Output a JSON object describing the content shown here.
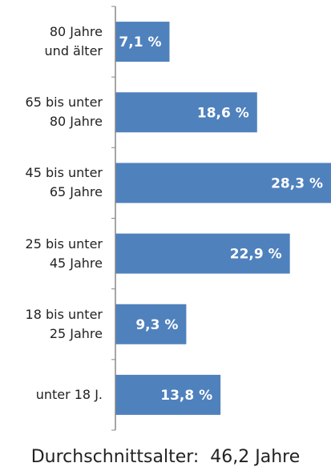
{
  "chart_data": {
    "type": "barh",
    "categories": [
      "80 Jahre\nund älter",
      "65 bis unter\n80 Jahre",
      "45 bis unter\n65 Jahre",
      "25 bis unter\n45 Jahre",
      "18 bis unter\n25 Jahre",
      "unter 18 J."
    ],
    "values": [
      7.1,
      18.6,
      28.3,
      22.9,
      9.3,
      13.8
    ],
    "value_labels": [
      "7,1 %",
      "18,6 %",
      "28,3 %",
      "22,9 %",
      "9,3 %",
      "13,8 %"
    ],
    "color": "#4f81bd",
    "annotation": "Durchschnittsalter:  46,2 Jahre"
  }
}
